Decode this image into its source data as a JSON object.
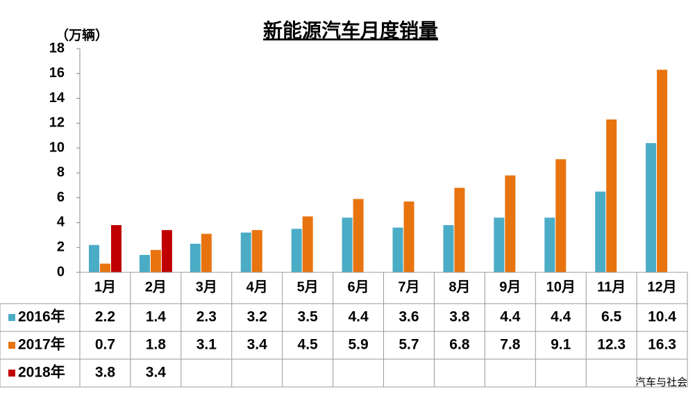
{
  "chart_data": {
    "type": "bar",
    "title": "新能源汽车月度销量",
    "y_label": "（万辆）",
    "source": "汽车与社会",
    "categories": [
      "1月",
      "2月",
      "3月",
      "4月",
      "5月",
      "6月",
      "7月",
      "8月",
      "9月",
      "10月",
      "11月",
      "12月"
    ],
    "series": [
      {
        "name": "2016年",
        "color": "#4bacc6",
        "values": [
          2.2,
          1.4,
          2.3,
          3.2,
          3.5,
          4.4,
          3.6,
          3.8,
          4.4,
          4.4,
          6.5,
          10.4
        ]
      },
      {
        "name": "2017年",
        "color": "#e8740f",
        "values": [
          0.7,
          1.8,
          3.1,
          3.4,
          4.5,
          5.9,
          5.7,
          6.8,
          7.8,
          9.1,
          12.3,
          16.3
        ]
      },
      {
        "name": "2018年",
        "color": "#c00000",
        "values": [
          3.8,
          3.4,
          null,
          null,
          null,
          null,
          null,
          null,
          null,
          null,
          null,
          null
        ]
      }
    ],
    "ylim": [
      0,
      18
    ],
    "yticks": [
      0,
      2,
      4,
      6,
      8,
      10,
      12,
      14,
      16,
      18
    ],
    "grid": false,
    "data_table": true
  }
}
